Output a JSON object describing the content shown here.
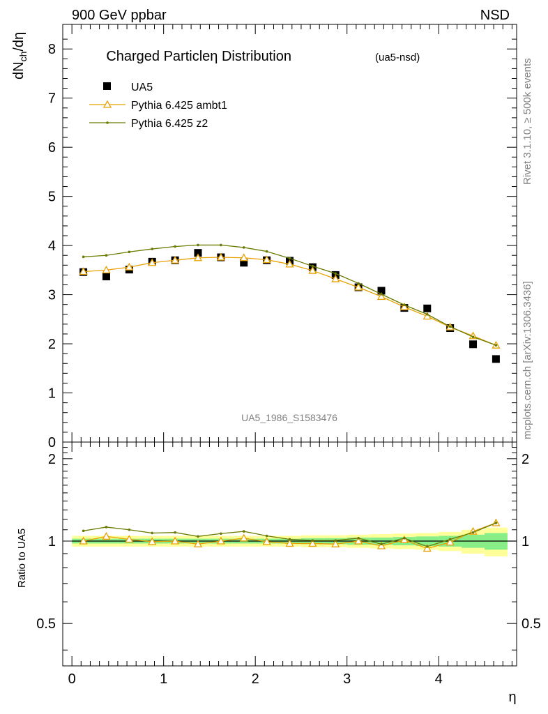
{
  "header": {
    "left": "900 GeV ppbar",
    "right": "NSD"
  },
  "side_text": {
    "top": "Rivet 3.1.10, ≥ 500k events",
    "bottom": "mcplots.cern.ch [arXiv:1306.3436]"
  },
  "watermark": "UA5_1986_S1583476",
  "chart_data": [
    {
      "type": "scatter",
      "title": "Charged Particleη Distribution",
      "subtitle": "(ua5-nsd)",
      "ylabel": "dN_ch/dη",
      "ylabel_parts": {
        "main": "dN",
        "sub": "ch",
        "tail": "/dη"
      },
      "xlim": [
        -0.1,
        4.85
      ],
      "ylim": [
        0,
        8.5
      ],
      "y_ticks": [
        "0",
        "1",
        "2",
        "3",
        "4",
        "5",
        "6",
        "7",
        "8"
      ],
      "legend_position": "top-left",
      "series": [
        {
          "name": "UA5",
          "marker": "square",
          "color": "#000000",
          "x": [
            0.125,
            0.375,
            0.625,
            0.875,
            1.125,
            1.375,
            1.625,
            1.875,
            2.125,
            2.375,
            2.625,
            2.875,
            3.125,
            3.375,
            3.625,
            3.875,
            4.125,
            4.375,
            4.625
          ],
          "y": [
            3.46,
            3.37,
            3.51,
            3.67,
            3.7,
            3.85,
            3.76,
            3.65,
            3.7,
            3.69,
            3.56,
            3.4,
            3.15,
            3.08,
            2.73,
            2.72,
            2.32,
            1.99,
            1.69
          ]
        },
        {
          "name": "Pythia 6.425 ambt1",
          "marker": "triangle",
          "color": "#e8a000",
          "x": [
            0.125,
            0.375,
            0.625,
            0.875,
            1.125,
            1.375,
            1.625,
            1.875,
            2.125,
            2.375,
            2.625,
            2.875,
            3.125,
            3.375,
            3.625,
            3.875,
            4.125,
            4.375,
            4.625
          ],
          "y": [
            3.47,
            3.5,
            3.56,
            3.65,
            3.7,
            3.75,
            3.76,
            3.75,
            3.71,
            3.62,
            3.49,
            3.32,
            3.15,
            2.96,
            2.75,
            2.56,
            2.34,
            2.16,
            1.97
          ]
        },
        {
          "name": "Pythia 6.425 z2",
          "marker": "dot",
          "color": "#6b7a00",
          "x": [
            0.125,
            0.375,
            0.625,
            0.875,
            1.125,
            1.375,
            1.625,
            1.875,
            2.125,
            2.375,
            2.625,
            2.875,
            3.125,
            3.375,
            3.625,
            3.875,
            4.125,
            4.375,
            4.625
          ],
          "y": [
            3.77,
            3.8,
            3.87,
            3.93,
            3.98,
            4.01,
            4.01,
            3.96,
            3.88,
            3.74,
            3.58,
            3.43,
            3.23,
            3.01,
            2.79,
            2.6,
            2.35,
            2.14,
            1.97
          ]
        }
      ]
    },
    {
      "type": "line",
      "ylabel": "Ratio to UA5",
      "xlabel": "η",
      "xlim": [
        -0.1,
        4.85
      ],
      "ylim": [
        0.35,
        2.3
      ],
      "x_ticks": [
        "0",
        "1",
        "2",
        "3",
        "4"
      ],
      "y_ticks": [
        {
          "value": 0.5,
          "label": "0.5"
        },
        {
          "value": 1,
          "label": "1"
        },
        {
          "value": 2,
          "label": "2"
        }
      ],
      "bands": {
        "x_edges": [
          0.0,
          0.25,
          0.5,
          0.75,
          1.0,
          1.25,
          1.5,
          1.75,
          2.0,
          2.25,
          2.5,
          2.75,
          3.0,
          3.25,
          3.5,
          3.75,
          4.0,
          4.25,
          4.5,
          4.75
        ],
        "yellow_half_width": [
          0.045,
          0.045,
          0.045,
          0.045,
          0.045,
          0.045,
          0.045,
          0.045,
          0.045,
          0.045,
          0.05,
          0.05,
          0.055,
          0.06,
          0.065,
          0.07,
          0.08,
          0.1,
          0.12
        ],
        "green_half_width": [
          0.02,
          0.02,
          0.02,
          0.02,
          0.02,
          0.02,
          0.02,
          0.02,
          0.02,
          0.02,
          0.025,
          0.025,
          0.03,
          0.03,
          0.035,
          0.04,
          0.045,
          0.055,
          0.07
        ]
      },
      "series": [
        {
          "name": "Pythia 6.425 ambt1",
          "color": "#e8a000",
          "x": [
            0.125,
            0.375,
            0.625,
            0.875,
            1.125,
            1.375,
            1.625,
            1.875,
            2.125,
            2.375,
            2.625,
            2.875,
            3.125,
            3.375,
            3.625,
            3.875,
            4.125,
            4.375,
            4.625
          ],
          "y": [
            1.0,
            1.04,
            1.015,
            0.995,
            1.0,
            0.975,
            1.0,
            1.025,
            0.995,
            0.98,
            0.98,
            0.975,
            1.0,
            0.96,
            1.01,
            0.94,
            0.99,
            1.085,
            1.165
          ]
        },
        {
          "name": "Pythia 6.425 z2",
          "color": "#6b7a00",
          "x": [
            0.125,
            0.375,
            0.625,
            0.875,
            1.125,
            1.375,
            1.625,
            1.875,
            2.125,
            2.375,
            2.625,
            2.875,
            3.125,
            3.375,
            3.625,
            3.875,
            4.125,
            4.375,
            4.625
          ],
          "y": [
            1.09,
            1.125,
            1.1,
            1.07,
            1.075,
            1.04,
            1.065,
            1.085,
            1.045,
            1.015,
            1.005,
            1.005,
            1.025,
            0.975,
            1.025,
            0.955,
            1.015,
            1.075,
            1.165
          ]
        }
      ]
    }
  ]
}
